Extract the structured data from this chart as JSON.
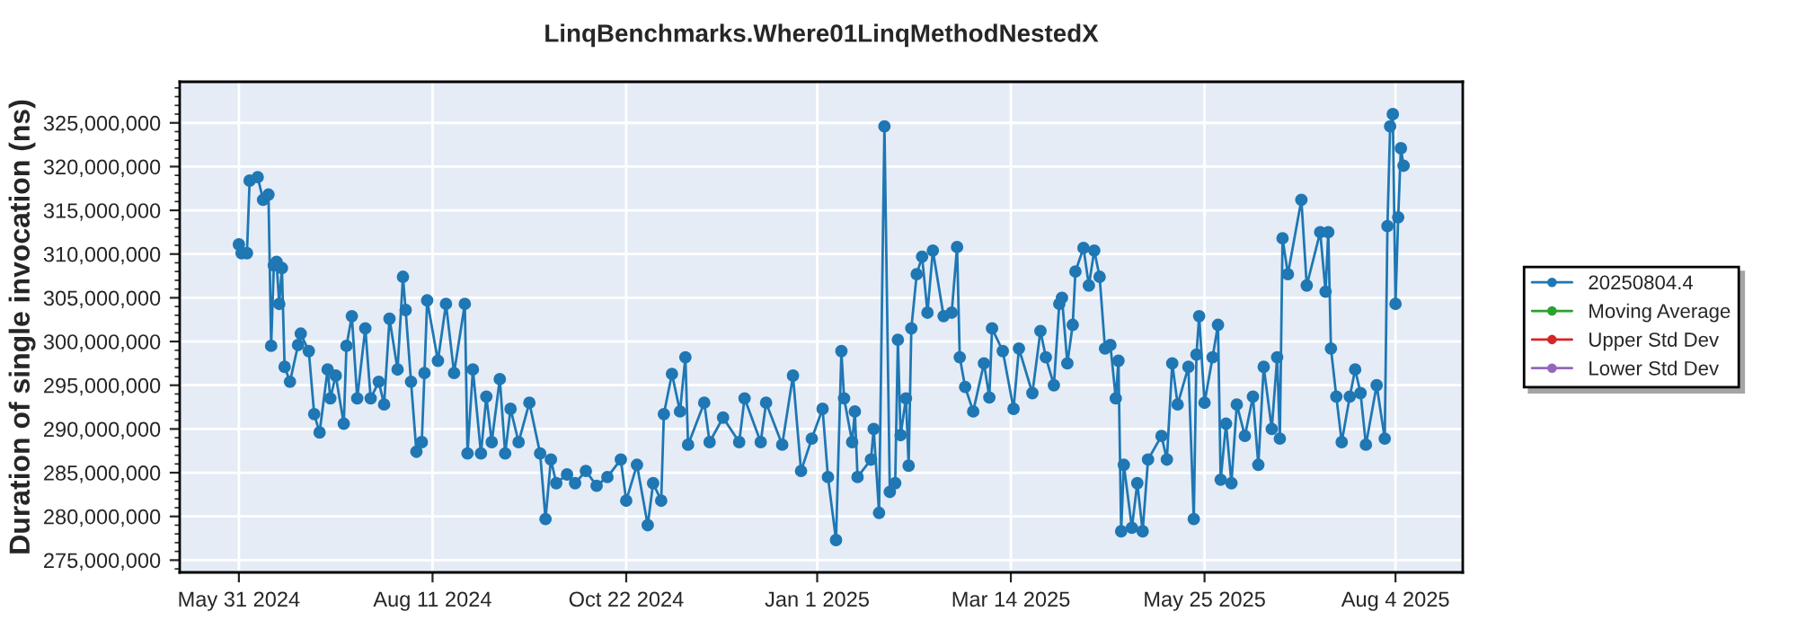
{
  "chart_data": {
    "type": "line",
    "title": "LinqBenchmarks.Where01LinqMethodNestedX",
    "ylabel": "Duration of single invocation (ns)",
    "xlim": [
      "2024-05-09",
      "2025-08-29"
    ],
    "xticks": [
      {
        "value": "2024-05-31",
        "label": "May 31 2024"
      },
      {
        "value": "2024-08-11",
        "label": "Aug 11 2024"
      },
      {
        "value": "2024-10-22",
        "label": "Oct 22 2024"
      },
      {
        "value": "2025-01-01",
        "label": "Jan 1 2025"
      },
      {
        "value": "2025-03-14",
        "label": "Mar 14 2025"
      },
      {
        "value": "2025-05-25",
        "label": "May 25 2025"
      },
      {
        "value": "2025-08-04",
        "label": "Aug 4 2025"
      }
    ],
    "ylim": [
      273600000,
      329700000
    ],
    "yticks": [
      {
        "value": 275000000,
        "label": "275,000,000"
      },
      {
        "value": 280000000,
        "label": "280,000,000"
      },
      {
        "value": 285000000,
        "label": "285,000,000"
      },
      {
        "value": 290000000,
        "label": "290,000,000"
      },
      {
        "value": 295000000,
        "label": "295,000,000"
      },
      {
        "value": 300000000,
        "label": "300,000,000"
      },
      {
        "value": 305000000,
        "label": "305,000,000"
      },
      {
        "value": 310000000,
        "label": "310,000,000"
      },
      {
        "value": 315000000,
        "label": "315,000,000"
      },
      {
        "value": 320000000,
        "label": "320,000,000"
      },
      {
        "value": 325000000,
        "label": "325,000,000"
      }
    ],
    "grid": true,
    "legend": "right",
    "marker": "circle",
    "series": [
      {
        "name": "20250804.4",
        "color": "#1f77b4",
        "x": [
          "2024-05-31",
          "2024-06-01",
          "2024-06-03",
          "2024-06-04",
          "2024-06-07",
          "2024-06-09",
          "2024-06-11",
          "2024-06-12",
          "2024-06-13",
          "2024-06-14",
          "2024-06-15",
          "2024-06-16",
          "2024-06-17",
          "2024-06-19",
          "2024-06-22",
          "2024-06-23",
          "2024-06-26",
          "2024-06-28",
          "2024-06-30",
          "2024-07-03",
          "2024-07-04",
          "2024-07-06",
          "2024-07-09",
          "2024-07-10",
          "2024-07-12",
          "2024-07-14",
          "2024-07-17",
          "2024-07-19",
          "2024-07-22",
          "2024-07-24",
          "2024-07-26",
          "2024-07-29",
          "2024-07-31",
          "2024-08-01",
          "2024-08-03",
          "2024-08-05",
          "2024-08-07",
          "2024-08-08",
          "2024-08-09",
          "2024-08-13",
          "2024-08-16",
          "2024-08-19",
          "2024-08-23",
          "2024-08-24",
          "2024-08-26",
          "2024-08-29",
          "2024-08-31",
          "2024-09-02",
          "2024-09-05",
          "2024-09-07",
          "2024-09-09",
          "2024-09-12",
          "2024-09-16",
          "2024-09-20",
          "2024-09-22",
          "2024-09-24",
          "2024-09-26",
          "2024-09-30",
          "2024-10-03",
          "2024-10-07",
          "2024-10-11",
          "2024-10-15",
          "2024-10-20",
          "2024-10-22",
          "2024-10-26",
          "2024-10-30",
          "2024-11-01",
          "2024-11-04",
          "2024-11-05",
          "2024-11-08",
          "2024-11-11",
          "2024-11-13",
          "2024-11-14",
          "2024-11-20",
          "2024-11-22",
          "2024-11-27",
          "2024-12-03",
          "2024-12-05",
          "2024-12-11",
          "2024-12-13",
          "2024-12-19",
          "2024-12-23",
          "2024-12-26",
          "2024-12-30",
          "2025-01-03",
          "2025-01-05",
          "2025-01-08",
          "2025-01-10",
          "2025-01-11",
          "2025-01-14",
          "2025-01-15",
          "2025-01-16",
          "2025-01-21",
          "2025-01-22",
          "2025-01-24",
          "2025-01-26",
          "2025-01-28",
          "2025-01-30",
          "2025-01-31",
          "2025-02-01",
          "2025-02-03",
          "2025-02-04",
          "2025-02-05",
          "2025-02-07",
          "2025-02-09",
          "2025-02-11",
          "2025-02-13",
          "2025-02-17",
          "2025-02-20",
          "2025-02-22",
          "2025-02-23",
          "2025-02-25",
          "2025-02-28",
          "2025-03-04",
          "2025-03-06",
          "2025-03-07",
          "2025-03-11",
          "2025-03-15",
          "2025-03-17",
          "2025-03-22",
          "2025-03-25",
          "2025-03-27",
          "2025-03-30",
          "2025-04-01",
          "2025-04-02",
          "2025-04-04",
          "2025-04-06",
          "2025-04-07",
          "2025-04-10",
          "2025-04-12",
          "2025-04-14",
          "2025-04-16",
          "2025-04-18",
          "2025-04-20",
          "2025-04-22",
          "2025-04-23",
          "2025-04-24",
          "2025-04-25",
          "2025-04-28",
          "2025-04-30",
          "2025-05-02",
          "2025-05-04",
          "2025-05-09",
          "2025-05-11",
          "2025-05-13",
          "2025-05-15",
          "2025-05-19",
          "2025-05-21",
          "2025-05-22",
          "2025-05-23",
          "2025-05-25",
          "2025-05-28",
          "2025-05-30",
          "2025-05-31",
          "2025-06-02",
          "2025-06-04",
          "2025-06-06",
          "2025-06-09",
          "2025-06-12",
          "2025-06-14",
          "2025-06-16",
          "2025-06-19",
          "2025-06-21",
          "2025-06-22",
          "2025-06-23",
          "2025-06-25",
          "2025-06-30",
          "2025-07-02",
          "2025-07-07",
          "2025-07-09",
          "2025-07-10",
          "2025-07-11",
          "2025-07-13",
          "2025-07-15",
          "2025-07-18",
          "2025-07-20",
          "2025-07-22",
          "2025-07-24",
          "2025-07-28",
          "2025-07-31",
          "2025-08-01",
          "2025-08-02",
          "2025-08-03",
          "2025-08-04",
          "2025-08-05",
          "2025-08-06",
          "2025-08-07"
        ],
        "values": [
          311100000,
          310100000,
          310100000,
          318400000,
          318800000,
          316200000,
          316800000,
          299500000,
          308700000,
          309100000,
          304300000,
          308400000,
          297100000,
          295400000,
          299600000,
          300900000,
          298900000,
          291700000,
          289600000,
          296800000,
          293500000,
          296100000,
          290600000,
          299500000,
          302900000,
          293500000,
          301500000,
          293500000,
          295400000,
          292800000,
          302600000,
          296800000,
          307400000,
          303600000,
          295400000,
          287400000,
          288500000,
          296400000,
          304700000,
          297800000,
          304300000,
          296400000,
          304300000,
          287200000,
          296800000,
          287200000,
          293700000,
          288500000,
          295700000,
          287200000,
          292300000,
          288500000,
          293000000,
          287200000,
          279700000,
          286500000,
          283800000,
          284800000,
          283800000,
          285200000,
          283500000,
          284500000,
          286500000,
          281800000,
          285900000,
          279000000,
          283800000,
          281800000,
          291700000,
          296300000,
          292000000,
          298200000,
          288200000,
          293000000,
          288500000,
          291300000,
          288500000,
          293500000,
          288500000,
          293000000,
          288200000,
          296100000,
          285200000,
          288900000,
          292300000,
          284500000,
          277300000,
          298900000,
          293500000,
          288500000,
          292000000,
          284500000,
          286500000,
          290000000,
          280400000,
          324600000,
          282800000,
          283800000,
          300200000,
          289300000,
          293500000,
          285800000,
          301500000,
          307700000,
          309700000,
          303300000,
          310400000,
          302900000,
          303300000,
          310800000,
          298200000,
          294800000,
          292000000,
          297500000,
          293600000,
          301500000,
          298900000,
          292300000,
          299200000,
          294100000,
          301200000,
          298200000,
          295000000,
          304300000,
          305000000,
          297500000,
          301900000,
          308000000,
          310700000,
          306400000,
          310400000,
          307400000,
          299200000,
          299600000,
          293500000,
          297800000,
          278300000,
          285900000,
          278700000,
          283800000,
          278300000,
          286500000,
          289200000,
          286500000,
          297500000,
          292800000,
          297100000,
          279700000,
          298500000,
          302900000,
          293000000,
          298200000,
          301900000,
          284200000,
          290600000,
          283800000,
          292800000,
          289200000,
          293700000,
          285900000,
          297100000,
          290000000,
          298200000,
          288900000,
          311800000,
          307700000,
          316200000,
          306400000,
          312500000,
          305700000,
          312500000,
          299200000,
          293700000,
          288500000,
          293700000,
          296800000,
          294100000,
          288200000,
          295000000,
          288900000,
          313200000,
          324600000,
          326000000,
          304300000,
          314200000,
          322100000,
          320100000
        ]
      },
      {
        "name": "Moving Average",
        "color": "#2ca02c"
      },
      {
        "name": "Upper Std Dev",
        "color": "#d62728"
      },
      {
        "name": "Lower Std Dev",
        "color": "#9467bd"
      }
    ]
  }
}
